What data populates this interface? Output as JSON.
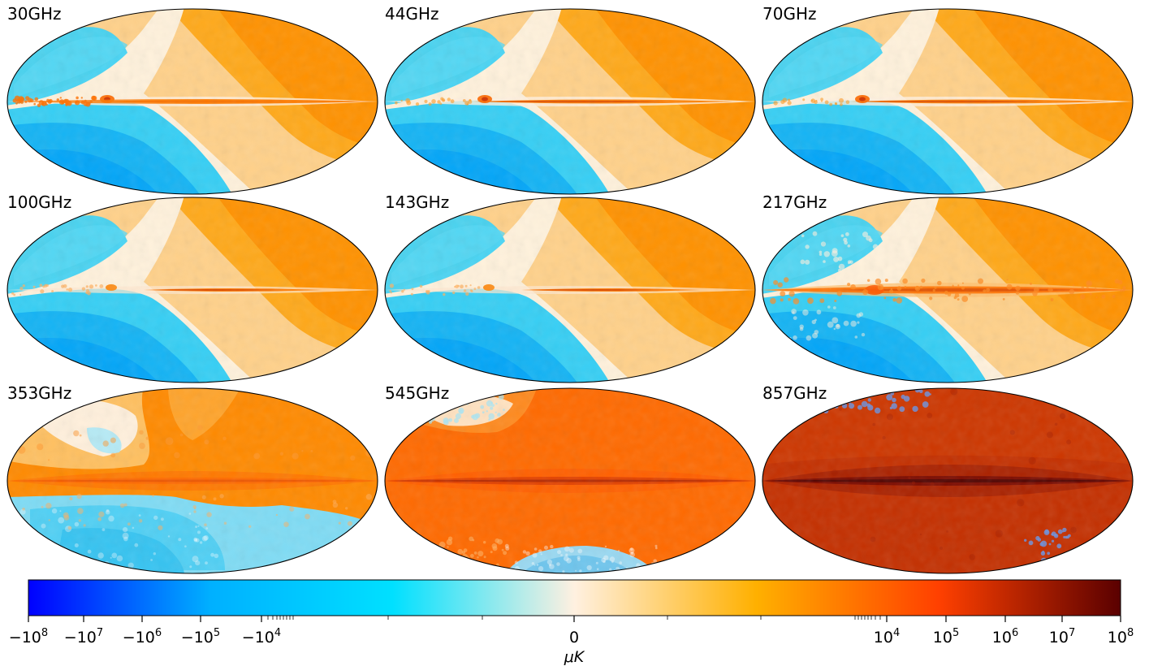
{
  "panels": [
    {
      "label": "30GHz",
      "style": "lfi"
    },
    {
      "label": "44GHz",
      "style": "lfi"
    },
    {
      "label": "70GHz",
      "style": "lfi"
    },
    {
      "label": "100GHz",
      "style": "hfi"
    },
    {
      "label": "143GHz",
      "style": "hfi"
    },
    {
      "label": "217GHz",
      "style": "hfi_dust"
    },
    {
      "label": "353GHz",
      "style": "dust353"
    },
    {
      "label": "545GHz",
      "style": "dust545"
    },
    {
      "label": "857GHz",
      "style": "dust857"
    }
  ],
  "colorbar": {
    "unit": "μK",
    "tick_labels": [
      {
        "base": "−10",
        "exp": "8"
      },
      {
        "base": "−10",
        "exp": "7"
      },
      {
        "base": "−10",
        "exp": "6"
      },
      {
        "base": "−10",
        "exp": "5"
      },
      {
        "base": "−10",
        "exp": "4"
      },
      {
        "base": "0",
        "exp": ""
      },
      {
        "base": "10",
        "exp": "4"
      },
      {
        "base": "10",
        "exp": "5"
      },
      {
        "base": "10",
        "exp": "6"
      },
      {
        "base": "10",
        "exp": "7"
      },
      {
        "base": "10",
        "exp": "8"
      }
    ],
    "colors": [
      "#0000ff",
      "#00b0ff",
      "#00e0ff",
      "#fff0e0",
      "#ffb000",
      "#ff4000",
      "#5a0000"
    ]
  }
}
